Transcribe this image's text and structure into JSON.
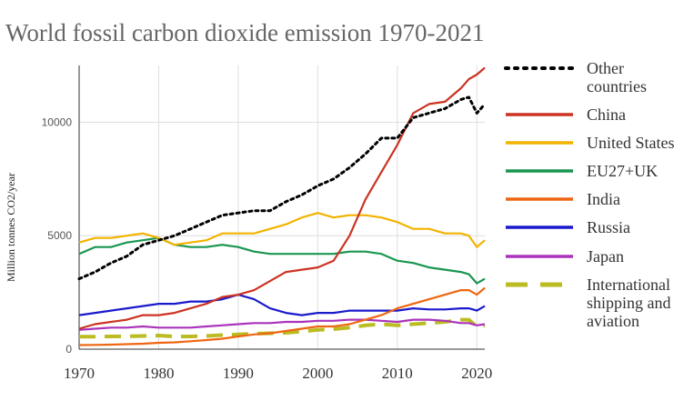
{
  "chart_data": {
    "type": "line",
    "title": "World fossil carbon dioxide emission 1970-2021",
    "xlabel": "",
    "ylabel": "Million tonnes CO2/year",
    "xlim": [
      1970,
      2021
    ],
    "ylim": [
      0,
      12500
    ],
    "xticks": [
      "1970",
      "1980",
      "1990",
      "2000",
      "2010",
      "2020"
    ],
    "yticks": [
      "0",
      "5000",
      "10000"
    ],
    "ytick_values": [
      0,
      5000,
      10000
    ],
    "xtick_values": [
      1970,
      1980,
      1990,
      2000,
      2010,
      2020
    ],
    "grid": true,
    "legend_position": "right",
    "x": [
      1970,
      1972,
      1974,
      1976,
      1978,
      1980,
      1982,
      1984,
      1986,
      1988,
      1990,
      1992,
      1994,
      1996,
      1998,
      2000,
      2002,
      2004,
      2006,
      2008,
      2010,
      2012,
      2014,
      2016,
      2018,
      2019,
      2020,
      2021
    ],
    "series": [
      {
        "name": "Other countries",
        "color": "#000000",
        "style": "dotted",
        "values": [
          3100,
          3400,
          3800,
          4100,
          4600,
          4800,
          5000,
          5300,
          5600,
          5900,
          6000,
          6100,
          6100,
          6500,
          6800,
          7200,
          7500,
          8000,
          8600,
          9300,
          9300,
          10200,
          10400,
          10600,
          11000,
          11100,
          10400,
          10800
        ]
      },
      {
        "name": "China",
        "color": "#cc3322",
        "style": "solid",
        "values": [
          900,
          1100,
          1200,
          1300,
          1500,
          1500,
          1600,
          1800,
          2000,
          2300,
          2400,
          2600,
          3000,
          3400,
          3500,
          3600,
          3900,
          5000,
          6600,
          7800,
          9000,
          10400,
          10800,
          10900,
          11500,
          11900,
          12100,
          12400
        ]
      },
      {
        "name": "United States",
        "color": "#f2b300",
        "style": "solid",
        "values": [
          4700,
          4900,
          4900,
          5000,
          5100,
          4900,
          4600,
          4700,
          4800,
          5100,
          5100,
          5100,
          5300,
          5500,
          5800,
          6000,
          5800,
          5900,
          5900,
          5800,
          5600,
          5300,
          5300,
          5100,
          5100,
          5000,
          4500,
          4800
        ]
      },
      {
        "name": "EU27+UK",
        "color": "#1a9650",
        "style": "solid",
        "values": [
          4200,
          4500,
          4500,
          4700,
          4800,
          4900,
          4600,
          4500,
          4500,
          4600,
          4500,
          4300,
          4200,
          4200,
          4200,
          4200,
          4200,
          4300,
          4300,
          4200,
          3900,
          3800,
          3600,
          3500,
          3400,
          3300,
          2900,
          3100
        ]
      },
      {
        "name": "India",
        "color": "#ee6611",
        "style": "solid",
        "values": [
          180,
          190,
          200,
          220,
          240,
          280,
          300,
          350,
          400,
          460,
          560,
          650,
          700,
          800,
          900,
          1000,
          1000,
          1100,
          1300,
          1500,
          1800,
          2000,
          2200,
          2400,
          2600,
          2600,
          2400,
          2700
        ]
      },
      {
        "name": "Russia",
        "color": "#1a1acc",
        "style": "solid",
        "values": [
          1500,
          1600,
          1700,
          1800,
          1900,
          2000,
          2000,
          2100,
          2100,
          2200,
          2400,
          2200,
          1800,
          1600,
          1500,
          1600,
          1600,
          1700,
          1700,
          1700,
          1700,
          1800,
          1750,
          1750,
          1800,
          1800,
          1700,
          1900
        ]
      },
      {
        "name": "Japan",
        "color": "#aa33bb",
        "style": "solid",
        "values": [
          850,
          900,
          950,
          950,
          1000,
          950,
          950,
          950,
          1000,
          1050,
          1100,
          1150,
          1150,
          1200,
          1200,
          1250,
          1250,
          1300,
          1300,
          1250,
          1200,
          1300,
          1300,
          1250,
          1150,
          1150,
          1050,
          1100
        ]
      },
      {
        "name": "International shipping and aviation",
        "color": "#bbbb22",
        "style": "dashed",
        "values": [
          550,
          550,
          560,
          570,
          580,
          600,
          560,
          560,
          580,
          620,
          650,
          680,
          700,
          720,
          780,
          850,
          880,
          950,
          1050,
          1100,
          1050,
          1100,
          1150,
          1200,
          1300,
          1300,
          1000,
          1050
        ]
      }
    ]
  },
  "legend": [
    {
      "lines": [
        "Other",
        "countries"
      ]
    },
    {
      "lines": [
        "China"
      ]
    },
    {
      "lines": [
        "United States"
      ]
    },
    {
      "lines": [
        "EU27+UK"
      ]
    },
    {
      "lines": [
        "India"
      ]
    },
    {
      "lines": [
        "Russia"
      ]
    },
    {
      "lines": [
        "Japan"
      ]
    },
    {
      "lines": [
        "International",
        "shipping and",
        "aviation"
      ]
    }
  ],
  "colors": {
    "grid": "#dddddd",
    "axis": "#333333",
    "title": "#666666"
  }
}
